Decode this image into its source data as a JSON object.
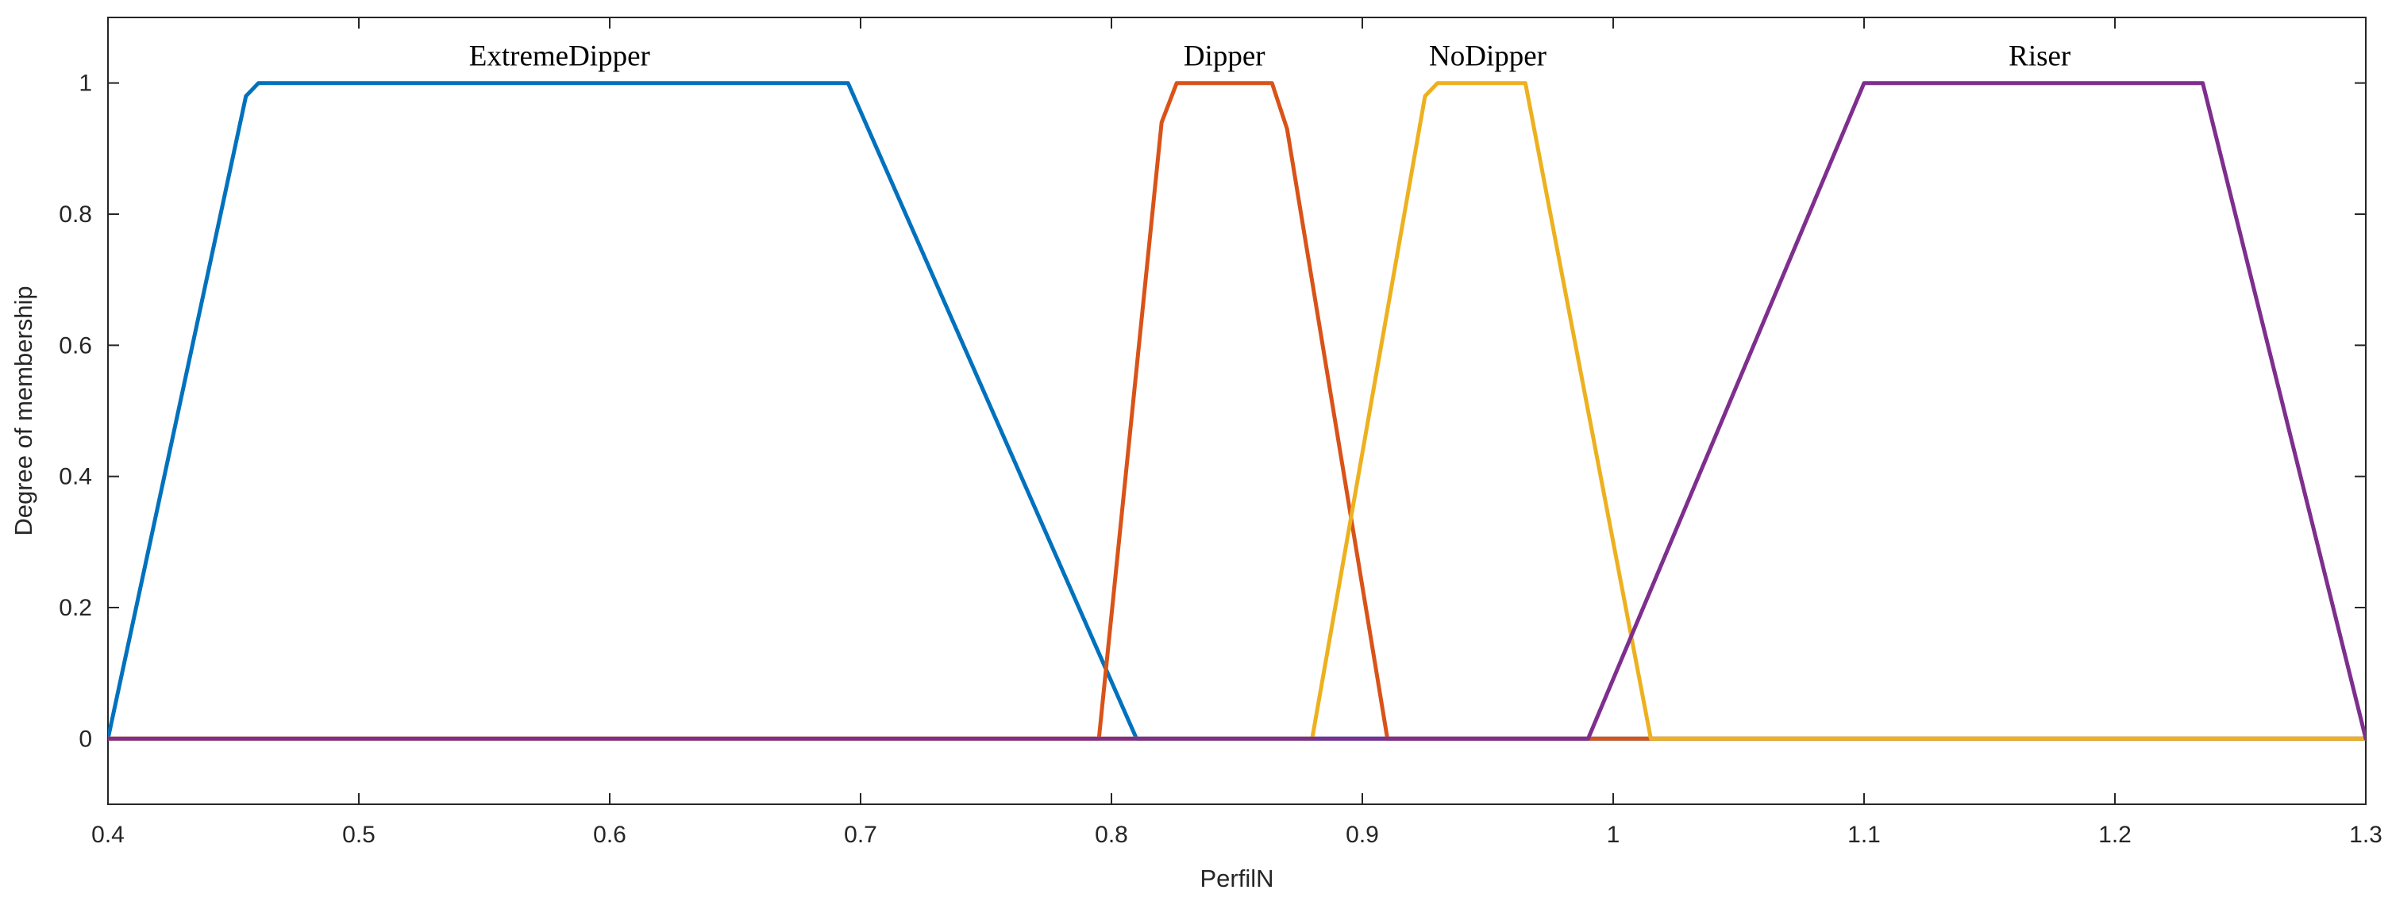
{
  "chart_data": {
    "type": "line",
    "xlabel": "PerfilN",
    "ylabel": "Degree of membership",
    "xlim": [
      0.4,
      1.3
    ],
    "ylim": [
      -0.1,
      1.1
    ],
    "xticks": [
      0.4,
      0.5,
      0.6,
      0.7,
      0.8,
      0.9,
      1.0,
      1.1,
      1.2,
      1.3
    ],
    "xtick_labels": [
      "0.4",
      "0.5",
      "0.6",
      "0.7",
      "0.8",
      "0.9",
      "1",
      "1.1",
      "1.2",
      "1.3"
    ],
    "yticks": [
      0,
      0.2,
      0.4,
      0.6,
      0.8,
      1.0
    ],
    "ytick_labels": [
      "0",
      "0.2",
      "0.4",
      "0.6",
      "0.8",
      "1"
    ],
    "grid": false,
    "legend": "none",
    "series": [
      {
        "name": "ExtremeDipper",
        "color": "#0072BD",
        "label_x": 0.58,
        "x": [
          0.4,
          0.455,
          0.46,
          0.695,
          0.81,
          1.3
        ],
        "y": [
          0,
          0.98,
          1,
          1,
          0,
          0
        ]
      },
      {
        "name": "Dipper",
        "color": "#D95319",
        "label_x": 0.845,
        "x": [
          0.4,
          0.795,
          0.82,
          0.826,
          0.864,
          0.87,
          0.91,
          1.3
        ],
        "y": [
          0,
          0,
          0.94,
          1,
          1,
          0.93,
          0,
          0
        ]
      },
      {
        "name": "NoDipper",
        "color": "#EDB120",
        "label_x": 0.95,
        "x": [
          0.4,
          0.88,
          0.925,
          0.93,
          0.965,
          1.015,
          1.3
        ],
        "y": [
          0,
          0,
          0.98,
          1,
          1,
          0,
          0
        ]
      },
      {
        "name": "Riser",
        "color": "#7E2F8E",
        "label_x": 1.17,
        "x": [
          0.4,
          0.99,
          1.1,
          1.235,
          1.3
        ],
        "y": [
          0,
          0,
          1,
          1,
          0
        ]
      }
    ]
  }
}
